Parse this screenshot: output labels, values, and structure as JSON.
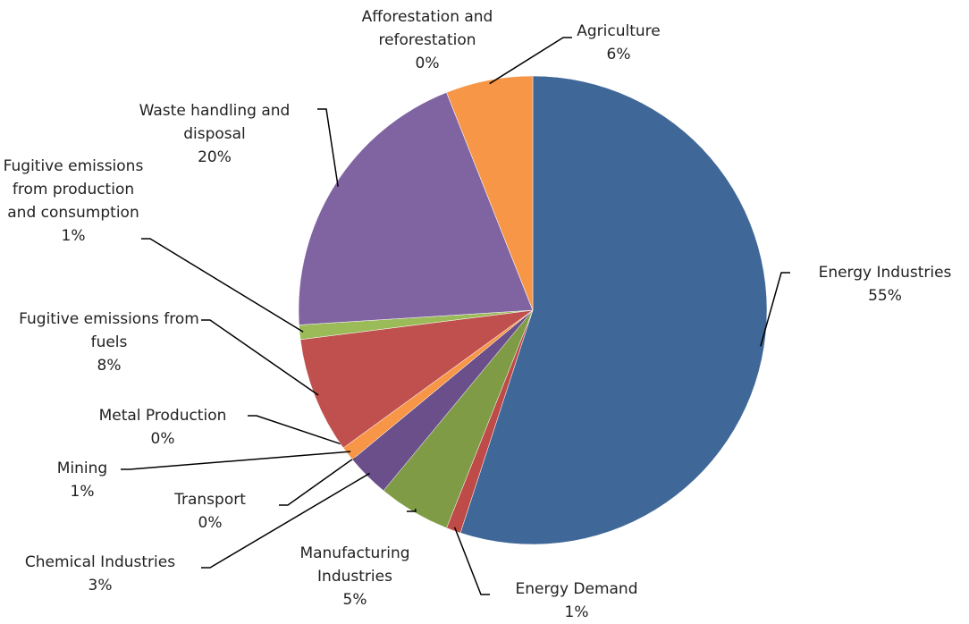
{
  "chart_data": {
    "type": "pie",
    "categories": [
      "Energy Industries",
      "Energy Demand",
      "Manufacturing Industries",
      "Chemical Industries",
      "Transport",
      "Mining",
      "Metal Production",
      "Fugitive emissions from fuels",
      "Fugitive emissions from production and consumption",
      "Waste handling and disposal",
      "Afforestation and reforestation",
      "Agriculture"
    ],
    "values": [
      55,
      1,
      5,
      3,
      0,
      1,
      0,
      8,
      1,
      20,
      0,
      6
    ],
    "value_labels": [
      "55%",
      "1%",
      "5%",
      "3%",
      "0%",
      "1%",
      "0%",
      "8%",
      "1%",
      "20%",
      "0%",
      "6%"
    ],
    "colors": [
      "#3f6797",
      "#be4b48",
      "#7f9b45",
      "#6a4f8a",
      "#4aacc6",
      "#f79646",
      "#3f6797",
      "#c0504d",
      "#9bbb59",
      "#8064a2",
      "#4bacc6",
      "#f79646"
    ]
  }
}
